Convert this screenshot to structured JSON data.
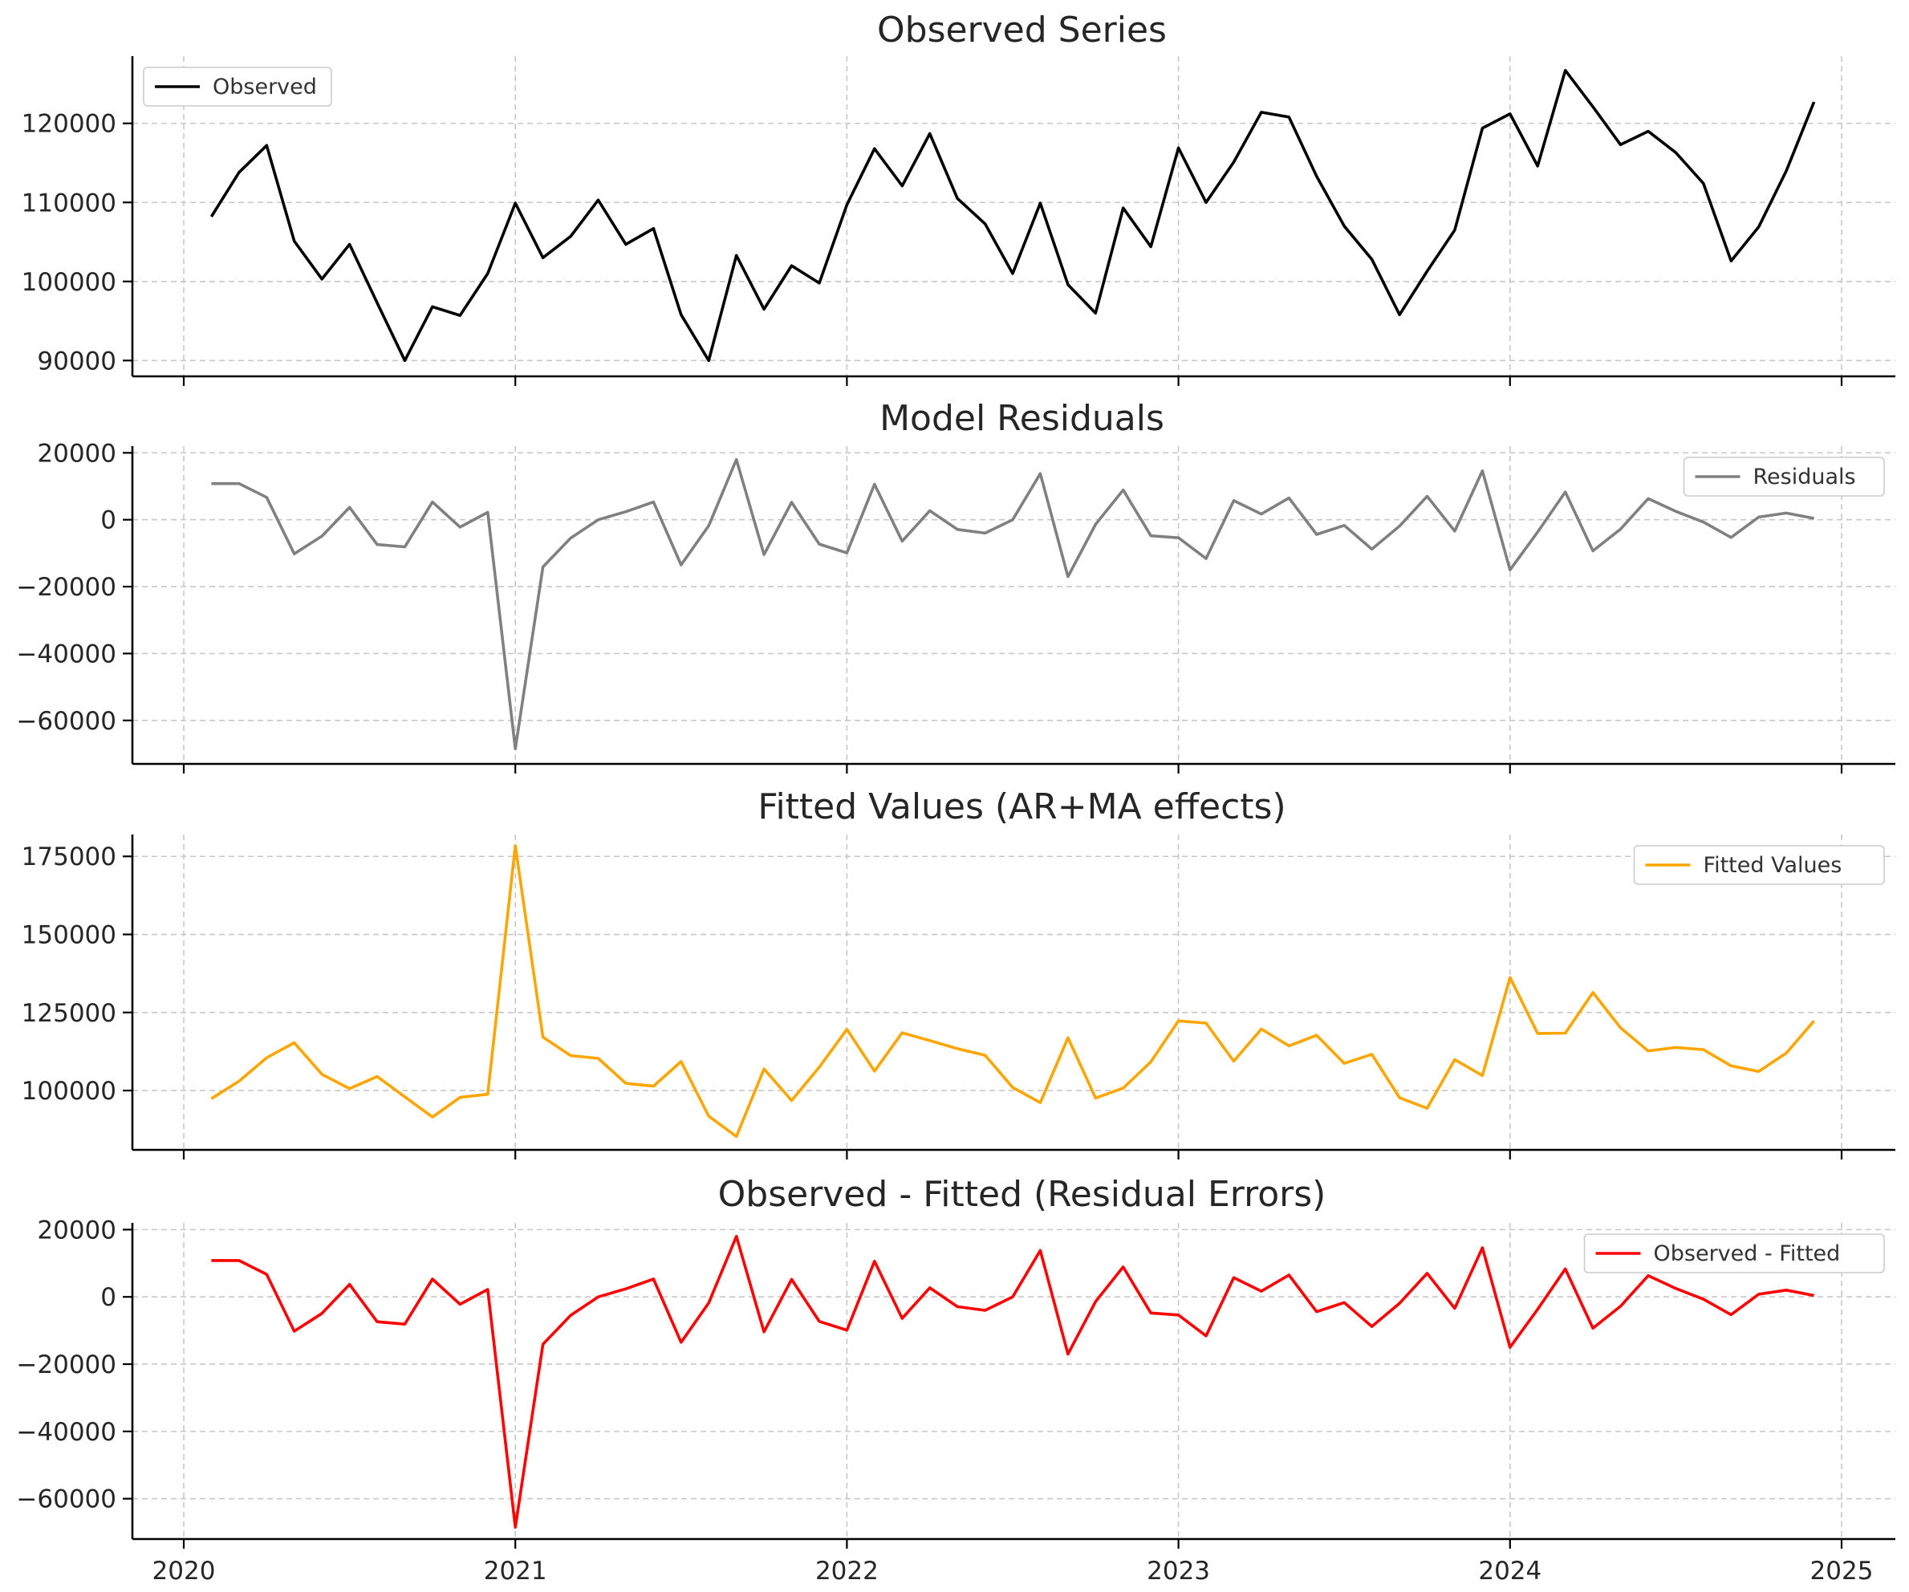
{
  "chart_data": [
    {
      "type": "line",
      "title": "Observed Series",
      "ylim": [
        88000,
        128500
      ],
      "yticks": [
        90000,
        100000,
        110000,
        120000
      ],
      "legend_position": "top-left",
      "grid": true,
      "series": [
        {
          "name": "Observed",
          "color": "#000000",
          "values": [
            108200,
            113800,
            117200,
            105100,
            100300,
            104700,
            97300,
            90000,
            96800,
            95700,
            101000,
            109900,
            103000,
            105700,
            110300,
            104700,
            106700,
            95800,
            90000,
            103300,
            96500,
            102000,
            99800,
            109700,
            116800,
            112100,
            118700,
            110500,
            107300,
            101000,
            109900,
            99600,
            96000,
            109300,
            104400,
            116900,
            110000,
            115100,
            121400,
            120800,
            113300,
            107000,
            102800,
            95800,
            101300,
            106500,
            119400,
            121200,
            114600,
            126700,
            122100,
            117300,
            119000,
            116300,
            112400,
            102600,
            106900,
            114000,
            122700
          ]
        }
      ]
    },
    {
      "type": "line",
      "title": "Model Residuals",
      "ylim": [
        -73000,
        22000
      ],
      "yticks": [
        -60000,
        -40000,
        -20000,
        0,
        20000
      ],
      "legend_position": "top-right",
      "grid": true,
      "series": [
        {
          "name": "Residuals",
          "color": "#808080",
          "values": [
            10800,
            10800,
            6700,
            -10200,
            -4900,
            3700,
            -7400,
            -8100,
            5300,
            -2200,
            2200,
            -68500,
            -14100,
            -5500,
            0,
            2400,
            5300,
            -13500,
            -1800,
            18000,
            -10400,
            5200,
            -7300,
            -9900,
            10600,
            -6400,
            2700,
            -2900,
            -4000,
            0,
            13800,
            -17000,
            -1400,
            8900,
            -4800,
            -5400,
            -11600,
            5700,
            1700,
            6500,
            -4400,
            -1700,
            -8800,
            -1900,
            7000,
            -3400,
            14600,
            -15000,
            -3700,
            8300,
            -9300,
            -2800,
            6300,
            2500,
            -700,
            -5300,
            800,
            2000,
            400
          ]
        }
      ]
    },
    {
      "type": "line",
      "title": "Fitted Values (AR+MA effects)",
      "ylim": [
        81000,
        182000
      ],
      "yticks": [
        100000,
        125000,
        150000,
        175000
      ],
      "legend_position": "top-right",
      "grid": true,
      "series": [
        {
          "name": "Fitted Values",
          "color": "#ffa500",
          "values": [
            97400,
            103000,
            110500,
            115300,
            105200,
            100600,
            104500,
            98000,
            91500,
            97800,
            98800,
            178400,
            117100,
            111200,
            110300,
            102300,
            101400,
            109300,
            91800,
            85300,
            106900,
            96800,
            107500,
            119600,
            106200,
            118500,
            116000,
            113400,
            111300,
            101000,
            96100,
            116900,
            97600,
            100800,
            109200,
            122300,
            121600,
            109400,
            119700,
            114300,
            117700,
            108700,
            111600,
            97700,
            94300,
            109900,
            104800,
            136200,
            118300,
            118400,
            131400,
            120100,
            112700,
            113800,
            113100,
            107900,
            106100,
            112000,
            122300
          ]
        }
      ]
    },
    {
      "type": "line",
      "title": "Observed - Fitted (Residual Errors)",
      "ylim": [
        -72000,
        22000
      ],
      "yticks": [
        -60000,
        -40000,
        -20000,
        0,
        20000
      ],
      "legend_position": "top-right",
      "grid": true,
      "series": [
        {
          "name": "Observed - Fitted",
          "color": "#ff0000",
          "values": [
            10800,
            10800,
            6700,
            -10200,
            -4900,
            3700,
            -7400,
            -8100,
            5300,
            -2200,
            2200,
            -68500,
            -14100,
            -5500,
            0,
            2400,
            5300,
            -13500,
            -1800,
            18000,
            -10400,
            5200,
            -7300,
            -9900,
            10600,
            -6400,
            2700,
            -2900,
            -4000,
            0,
            13800,
            -17000,
            -1400,
            8900,
            -4800,
            -5400,
            -11600,
            5700,
            1700,
            6500,
            -4400,
            -1700,
            -8800,
            -1900,
            7000,
            -3400,
            14600,
            -15000,
            -3700,
            8300,
            -9300,
            -2800,
            6300,
            2500,
            -700,
            -5300,
            800,
            2000,
            400
          ]
        }
      ]
    }
  ],
  "x_axis": {
    "start": "2020-02-01",
    "step": "1 month",
    "ticks": [
      "2020",
      "2021",
      "2022",
      "2023",
      "2024",
      "2025"
    ]
  }
}
